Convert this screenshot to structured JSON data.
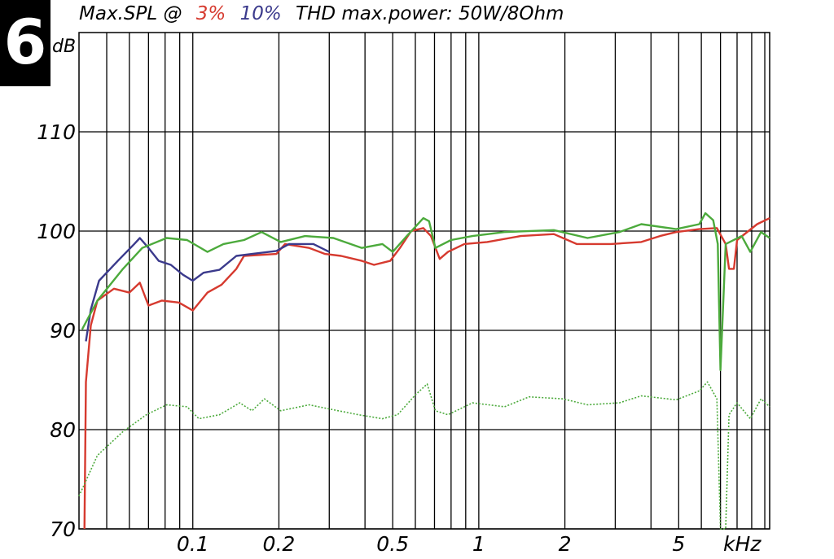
{
  "chart_data": {
    "type": "line",
    "badge": "6",
    "title": "Max.SPL @",
    "title_suffix": "THD max.power: 50W/8Ohm",
    "ylabel": "dB",
    "xlabel": "kHz",
    "xscale": "log",
    "grid": true,
    "xlim": [
      0.04,
      10.4
    ],
    "ylim": [
      70,
      120
    ],
    "xticks": [
      0.1,
      0.2,
      0.5,
      1,
      2,
      5
    ],
    "xminor_ticks": [
      0.05,
      0.06,
      0.07,
      0.08,
      0.09,
      0.3,
      0.4,
      0.6,
      0.7,
      0.8,
      0.9,
      3,
      4,
      6,
      7,
      8,
      9,
      10
    ],
    "yticks": [
      70,
      80,
      90,
      100,
      110
    ],
    "series": [
      {
        "name": "3%",
        "color": "#d63a2f",
        "style": "solid",
        "x": [
          0.0418,
          0.0423,
          0.044,
          0.0464,
          0.053,
          0.06,
          0.0653,
          0.07,
          0.078,
          0.0894,
          0.1,
          0.1125,
          0.126,
          0.142,
          0.151,
          0.196,
          0.21,
          0.255,
          0.29,
          0.33,
          0.39,
          0.43,
          0.49,
          0.53,
          0.58,
          0.64,
          0.68,
          0.73,
          0.78,
          0.89,
          1.07,
          1.4,
          1.83,
          2.2,
          2.9,
          3.7,
          4.3,
          4.9,
          5.9,
          6.8,
          7.3,
          7.5,
          7.8,
          8.0,
          9.4,
          10.4
        ],
        "values": [
          70,
          84.8,
          90.5,
          93,
          94.2,
          93.8,
          94.8,
          92.5,
          93,
          92.8,
          92,
          93.8,
          94.6,
          96.2,
          97.5,
          97.7,
          98.7,
          98.3,
          97.7,
          97.5,
          97,
          96.6,
          97,
          98.3,
          100,
          100.3,
          99.5,
          97.2,
          97.9,
          98.7,
          98.9,
          99.5,
          99.7,
          98.7,
          98.7,
          98.9,
          99.5,
          99.9,
          100.2,
          100.3,
          98.7,
          96.2,
          96.2,
          99.1,
          100.7,
          101.3
        ]
      },
      {
        "name": "10%",
        "color": "#3b3a8c",
        "style": "solid",
        "x": [
          0.0423,
          0.044,
          0.047,
          0.0547,
          0.0624,
          0.0653,
          0.07,
          0.076,
          0.0838,
          0.0924,
          0.1,
          0.109,
          0.124,
          0.142,
          0.161,
          0.196,
          0.217,
          0.264,
          0.3
        ],
        "values": [
          88.9,
          92.1,
          95,
          97,
          98.7,
          99.3,
          98.3,
          97,
          96.6,
          95.6,
          95,
          95.8,
          96.1,
          97.5,
          97.7,
          98,
          98.7,
          98.7,
          97.9
        ]
      },
      {
        "color": "#4caa3c",
        "style": "solid",
        "x": [
          0.041,
          0.0464,
          0.057,
          0.0666,
          0.081,
          0.0955,
          0.1125,
          0.128,
          0.151,
          0.174,
          0.203,
          0.247,
          0.31,
          0.39,
          0.46,
          0.5,
          0.56,
          0.64,
          0.67,
          0.705,
          0.8,
          0.95,
          1.23,
          1.83,
          2.4,
          3.1,
          3.7,
          4.9,
          5.9,
          6.2,
          6.6,
          6.85,
          7,
          7.3,
          8.3,
          8.9,
          9.7,
          10.4
        ],
        "values": [
          90.1,
          93,
          96.2,
          98.3,
          99.3,
          99.1,
          97.9,
          98.7,
          99.1,
          99.9,
          98.9,
          99.5,
          99.3,
          98.3,
          98.7,
          97.9,
          99.5,
          101.3,
          101,
          98.3,
          99.1,
          99.5,
          99.9,
          100.1,
          99.3,
          99.9,
          100.7,
          100.2,
          100.7,
          101.8,
          101.1,
          98.7,
          86,
          98.7,
          99.5,
          97.9,
          99.9,
          99.3
        ]
      },
      {
        "color": "#4caa3c",
        "style": "dotted",
        "x": [
          0.04,
          0.0464,
          0.057,
          0.0688,
          0.081,
          0.0955,
          0.105,
          0.124,
          0.146,
          0.161,
          0.178,
          0.203,
          0.255,
          0.31,
          0.38,
          0.46,
          0.52,
          0.6,
          0.66,
          0.705,
          0.78,
          0.95,
          1.23,
          1.5,
          1.97,
          2.4,
          3.1,
          3.7,
          4.9,
          5.9,
          6.3,
          6.8,
          7,
          7.3,
          7.5,
          8,
          8.9,
          9.7,
          10.4
        ],
        "values": [
          73.3,
          77.4,
          79.8,
          81.5,
          82.5,
          82.3,
          81.1,
          81.5,
          82.7,
          81.9,
          83.1,
          81.9,
          82.5,
          82,
          81.5,
          81.1,
          81.5,
          83.5,
          84.6,
          81.9,
          81.5,
          82.7,
          82.3,
          83.3,
          83.1,
          82.5,
          82.7,
          83.4,
          83,
          83.9,
          84.8,
          83.1,
          70,
          70,
          81.5,
          82.7,
          81.1,
          83.1,
          82.3
        ]
      }
    ]
  }
}
